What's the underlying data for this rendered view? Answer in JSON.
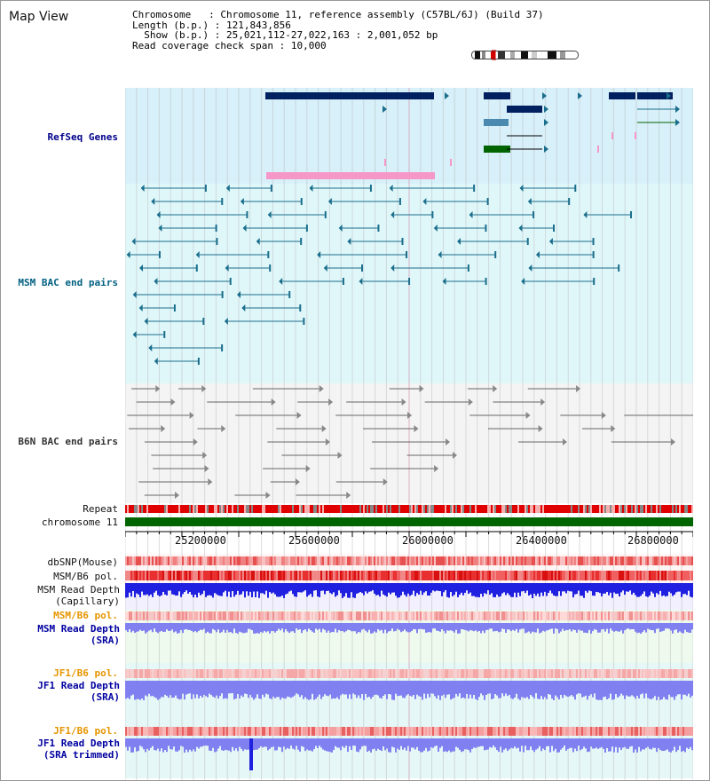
{
  "title": "Map View",
  "info": {
    "chromosome_label": "Chromosome",
    "chromosome_value": "Chromosome 11, reference assembly (C57BL/6J) (Build 37)",
    "length_label": "Length (b.p.)",
    "length_value": "121,843,856",
    "show_label": "Show (b.p.)",
    "show_value": "25,021,112-27,022,163 : 2,001,052 bp",
    "coverage_label": "Read coverage check span",
    "coverage_value": "10,000"
  },
  "tracks": {
    "refseq": "RefSeq Genes",
    "msm_bac": "MSM BAC end pairs",
    "b6n_bac": "B6N BAC end pairs",
    "repeat": "Repeat",
    "chromosome": "chromosome 11",
    "dbsnp": "dbSNP(Mouse)",
    "msm_b6_pol_1": "MSM/B6 pol.",
    "msm_depth_cap_1": "MSM Read Depth",
    "msm_depth_cap_2": "(Capillary)",
    "msm_b6_pol_2": "MSM/B6 pol.",
    "msm_depth_sra_1": "MSM Read Depth",
    "msm_depth_sra_2": "(SRA)",
    "jf1_b6_pol_1": "JF1/B6 pol.",
    "jf1_depth_sra_1": "JF1 Read Depth",
    "jf1_depth_sra_2": "(SRA)",
    "jf1_b6_pol_2": "JF1/B6 pol.",
    "jf1_depth_trim_1": "JF1 Read Depth",
    "jf1_depth_trim_2": "(SRA trimmed)"
  },
  "axis": {
    "ticks": [
      "25200000",
      "25600000",
      "26000000",
      "26400000",
      "26800000"
    ]
  },
  "colors": {
    "refseq_label": "#00008b",
    "msm_label": "#006080",
    "b6n_label": "#333333",
    "orange_label": "#e69500",
    "blue_label": "#0000a0",
    "gene_dark": "#002060",
    "gene_pink": "#f598c8",
    "gene_green": "#006400",
    "chrom_green": "#006400",
    "bac_teal": "#1a6e8c",
    "read_depth_blue": "#2020e0",
    "read_depth_light": "#8080f0"
  }
}
